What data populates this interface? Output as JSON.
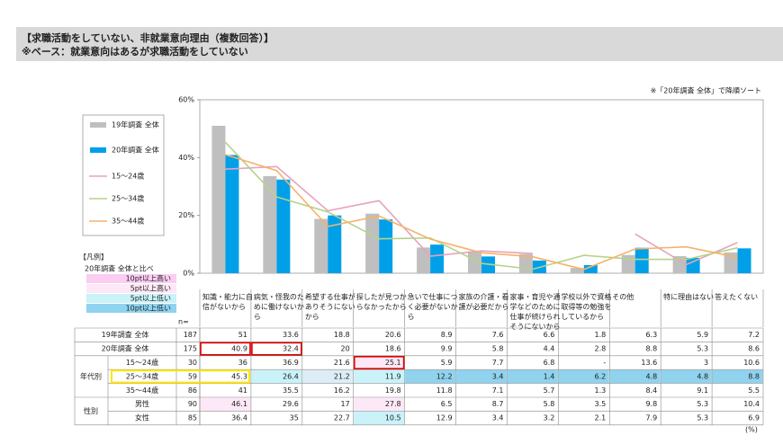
{
  "header": {
    "title": "【求職活動をしていない、非就業意向理由（複数回答）】",
    "subtitle": "※ベース：就業意向はあるが求職活動をしていない"
  },
  "note": "※「20年調査 全体」で降順ソート",
  "chart_data": {
    "type": "bar",
    "ylim": [
      0,
      60
    ],
    "yticks": [
      {
        "value": 0,
        "label": "0%"
      },
      {
        "value": 20,
        "label": "20%"
      },
      {
        "value": 40,
        "label": "40%"
      },
      {
        "value": 60,
        "label": "60%"
      }
    ],
    "categories": [
      "知識・能力に自信がないから",
      "病気・怪我のために働けないから",
      "希望する仕事がありそうにないから",
      "探したが見つからなかったから",
      "急いで仕事につく必要がないから",
      "家族の介護・看護が必要だから",
      "家事・育児や通学などのために仕事が続けられそうにないから",
      "学校以外で資格取得等の勉強をしているから",
      "その他",
      "特に理由はない",
      "答えたくない"
    ],
    "series": [
      {
        "name": "19年調査 全体",
        "style": "bar",
        "color": "#bfbfbf",
        "values": [
          51.0,
          33.6,
          18.8,
          20.6,
          8.9,
          7.6,
          6.6,
          1.8,
          6.3,
          5.9,
          7.2
        ]
      },
      {
        "name": "20年調査 全体",
        "style": "bar",
        "color": "#00a0e9",
        "values": [
          40.9,
          32.4,
          20.0,
          18.6,
          9.9,
          5.8,
          4.4,
          2.8,
          8.8,
          5.3,
          8.6
        ]
      },
      {
        "name": "15～24歳",
        "style": "line",
        "color": "#e6a3bd",
        "values": [
          36.0,
          36.9,
          21.6,
          25.1,
          5.9,
          7.7,
          6.8,
          null,
          13.6,
          3.0,
          10.6
        ]
      },
      {
        "name": "25～34歳",
        "style": "line",
        "color": "#b5d38b",
        "values": [
          45.3,
          26.4,
          21.2,
          11.9,
          12.2,
          3.4,
          1.4,
          6.2,
          4.8,
          4.8,
          8.8
        ]
      },
      {
        "name": "35～44歳",
        "style": "line",
        "color": "#f6b26b",
        "values": [
          41.0,
          35.5,
          16.2,
          19.8,
          11.8,
          7.1,
          5.7,
          1.3,
          8.4,
          9.1,
          5.5
        ]
      }
    ]
  },
  "legend_key": {
    "title": "【凡例】",
    "subtitle": "20年調査 全体と比べ",
    "items": [
      {
        "label": "10pt以上高い",
        "color": "#fbcdf2"
      },
      {
        "label": "5pt以上高い",
        "color": "#fde8f7"
      },
      {
        "label": "5pt以上低い",
        "color": "#c9f2f9"
      },
      {
        "label": "10pt以上低い",
        "color": "#8fd3ef"
      }
    ]
  },
  "table": {
    "n_header": "n=",
    "unit": "(%)",
    "group_labels": [
      "年代別",
      "性別"
    ],
    "rows": [
      {
        "label": "19年調査 全体",
        "n": 187,
        "values": [
          51.0,
          33.6,
          18.8,
          20.6,
          8.9,
          7.6,
          6.6,
          1.8,
          6.3,
          5.9,
          7.2
        ]
      },
      {
        "label": "20年調査 全体",
        "n": 175,
        "values": [
          40.9,
          32.4,
          20.0,
          18.6,
          9.9,
          5.8,
          4.4,
          2.8,
          8.8,
          5.3,
          8.6
        ],
        "outline": [
          "#e00000",
          "#e00000",
          null,
          null,
          null,
          null,
          null,
          null,
          null,
          null,
          null
        ]
      },
      {
        "label": "15～24歳",
        "n": 30,
        "values": [
          36.0,
          36.9,
          21.6,
          25.1,
          5.9,
          7.7,
          6.8,
          "-",
          13.6,
          3.0,
          10.6
        ],
        "shade": [
          null,
          null,
          null,
          "#fde8f7",
          null,
          null,
          null,
          null,
          null,
          null,
          null
        ],
        "outline": [
          null,
          null,
          null,
          "#e00000",
          null,
          null,
          null,
          null,
          null,
          null,
          null
        ]
      },
      {
        "label": "25～34歳",
        "n": 59,
        "values": [
          45.3,
          26.4,
          21.2,
          11.9,
          12.2,
          3.4,
          1.4,
          6.2,
          4.8,
          4.8,
          8.8
        ],
        "shade": [
          null,
          "#c9f2f9",
          "#dcedf5",
          "#c9f2f9",
          "#8fd3ef",
          "#8fd3ef",
          "#8fd3ef",
          "#8fd3ef",
          "#8fd3ef",
          "#8fd3ef",
          "#8fd3ef"
        ],
        "label_outline": "#ffe600"
      },
      {
        "label": "35～44歳",
        "n": 86,
        "values": [
          41.0,
          35.5,
          16.2,
          19.8,
          11.8,
          7.1,
          5.7,
          1.3,
          8.4,
          9.1,
          5.5
        ]
      },
      {
        "label": "男性",
        "n": 90,
        "values": [
          46.1,
          29.6,
          17.0,
          27.8,
          6.5,
          8.7,
          5.8,
          3.5,
          9.8,
          5.3,
          10.4
        ],
        "shade": [
          "#fde8f7",
          null,
          null,
          "#fde8f7",
          null,
          null,
          null,
          null,
          null,
          null,
          null
        ]
      },
      {
        "label": "女性",
        "n": 85,
        "values": [
          36.4,
          35.0,
          22.7,
          10.5,
          12.9,
          3.4,
          3.2,
          2.1,
          7.9,
          5.3,
          6.9
        ],
        "shade": [
          null,
          null,
          null,
          "#c9f2f9",
          null,
          null,
          null,
          null,
          null,
          null,
          null
        ]
      }
    ]
  }
}
